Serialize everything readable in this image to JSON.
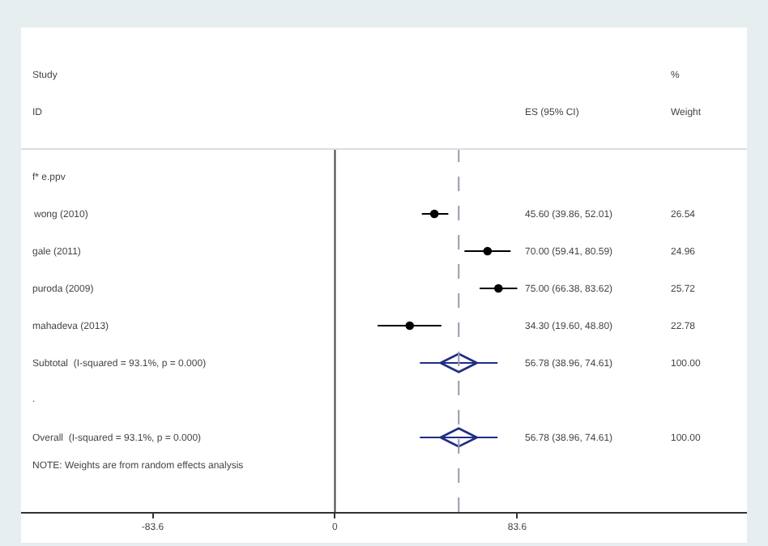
{
  "chart_data": {
    "type": "scatter",
    "orientation": "horizontal",
    "categories": [
      "f* e.ppv",
      "wong (2010)",
      "gale (2011)",
      "puroda (2009)",
      "mahadeva (2013)",
      "Subtotal  (I-squared = 93.1%, p = 0.000)",
      ".",
      "Overall  (I-squared = 93.1%, p = 0.000)"
    ],
    "xlim": [
      -144,
      189
    ],
    "xticks": [
      {
        "value": -83.6,
        "label": "-83.6"
      },
      0,
      83.6
    ],
    "series": [
      {
        "color": "#000000",
        "marker": "circle",
        "values": [
          null,
          45.6,
          70,
          75,
          34.3,
          null,
          null,
          null
        ],
        "errors": [
          null,
          [
            39.86,
            52.01
          ],
          [
            59.41,
            80.59
          ],
          [
            66.38,
            83.62
          ],
          [
            19.6,
            48.8
          ],
          null,
          null,
          null
        ]
      },
      {
        "color": "#1f2d86",
        "marker": "diamond",
        "values": [
          null,
          null,
          null,
          null,
          null,
          56.78,
          null,
          56.78
        ],
        "errors": [
          null,
          null,
          null,
          null,
          null,
          [
            38.96,
            74.61
          ],
          null,
          [
            38.96,
            74.61
          ]
        ]
      }
    ],
    "annotations": [
      "Study",
      "ID",
      "ES (95% CI)",
      "%",
      "Weight",
      "45.60 (39.86, 52.01)",
      "26.54",
      "70.00 (59.41, 80.59)",
      "24.96",
      "75.00 (66.38, 83.62)",
      "25.72",
      "34.30 (19.60, 48.80)",
      "22.78",
      "56.78 (38.96, 74.61)",
      "100.00",
      "56.78 (38.96, 74.61)",
      "100.00",
      "NOTE: Weights are from random effects analysis"
    ],
    "ref_lines": [
      {
        "axis": "x",
        "value": 0,
        "color": "#444444",
        "line_style": "solid"
      },
      {
        "axis": "x",
        "value": 56.78,
        "color": "#9a9ab0",
        "line_style": "dashed"
      }
    ],
    "grid": false
  }
}
